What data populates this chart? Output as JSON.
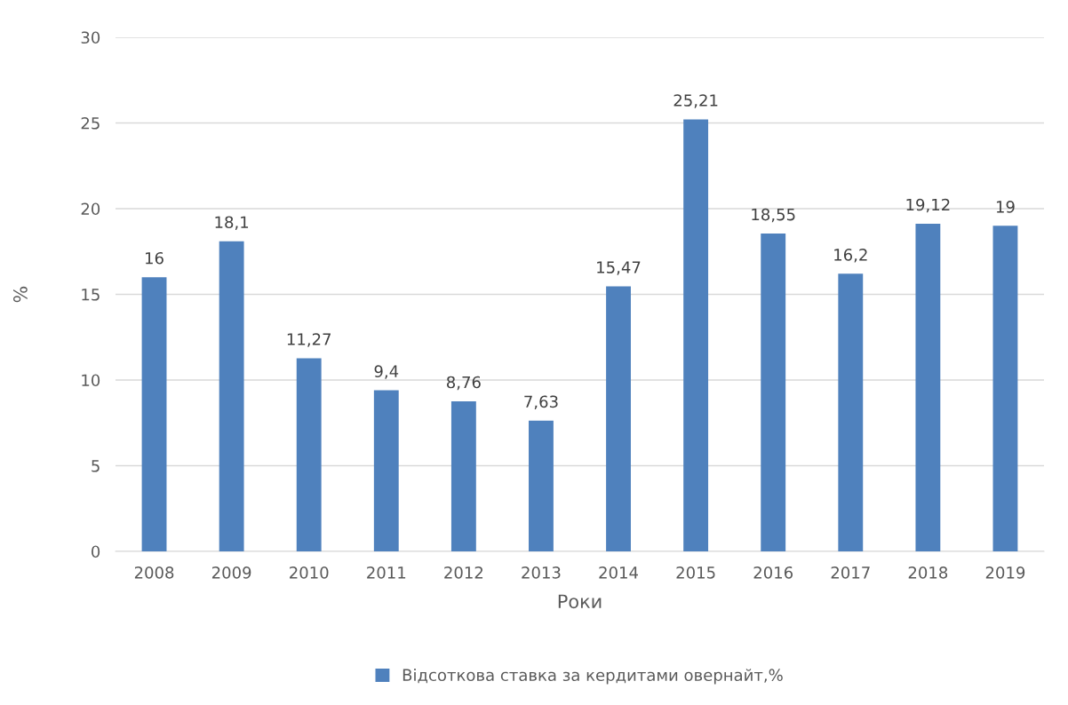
{
  "chart_data": {
    "type": "bar",
    "xlabel": "Роки",
    "ylabel": "%",
    "categories": [
      "2008",
      "2009",
      "2010",
      "2011",
      "2012",
      "2013",
      "2014",
      "2015",
      "2016",
      "2017",
      "2018",
      "2019"
    ],
    "series": [
      {
        "name": "Відсоткова ставка за кердитами овернайт,%",
        "color": "#4f81bd",
        "values": [
          16,
          18.1,
          11.27,
          9.4,
          8.76,
          7.63,
          15.47,
          25.21,
          18.55,
          16.2,
          19.12,
          19
        ],
        "value_labels": [
          "16",
          "18,1",
          "11,27",
          "9,4",
          "8,76",
          "7,63",
          "15,47",
          "25,21",
          "18,55",
          "16,2",
          "19,12",
          "19"
        ]
      }
    ],
    "ylim": [
      0,
      30
    ],
    "yticks": [
      0,
      5,
      10,
      15,
      20,
      25,
      30
    ],
    "grid": "y",
    "legend": "bottom"
  }
}
